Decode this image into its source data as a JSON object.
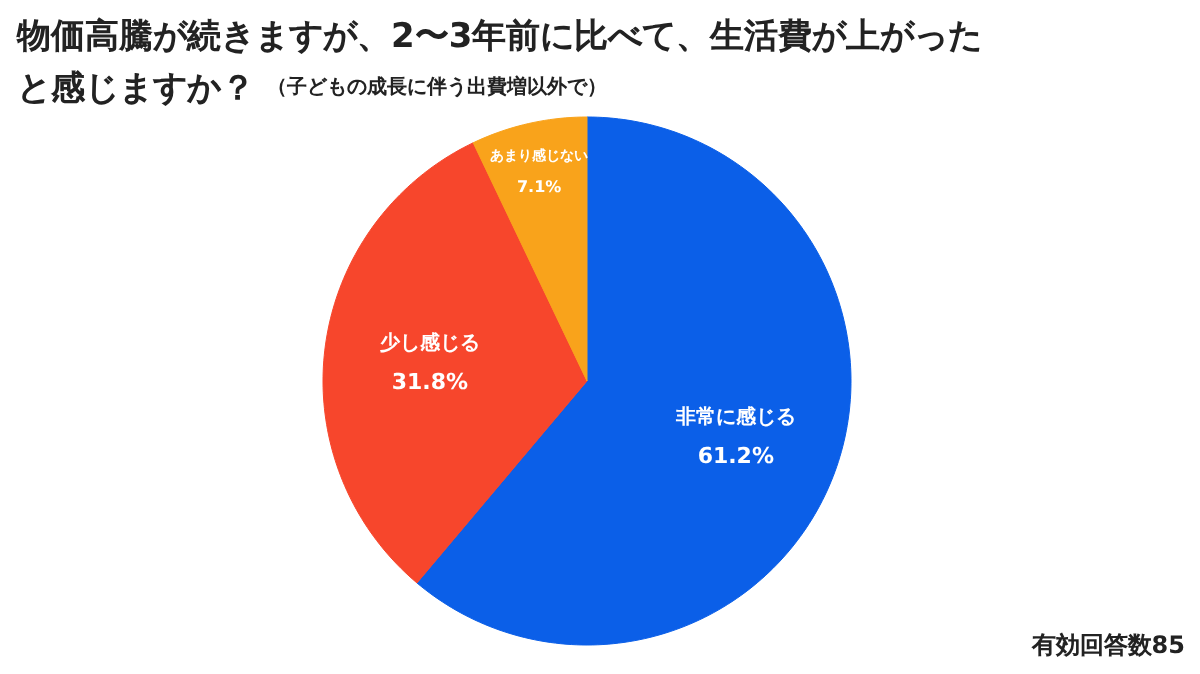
{
  "chart_data": {
    "type": "pie",
    "title": "物価高騰が続きますが、2〜3年前に比べて、生活費が上がったと感じますか？",
    "subtitle": "（子どもの成長に伴う出費増以外で）",
    "categories": [
      "非常に感じる",
      "少し感じる",
      "あまり感じない"
    ],
    "values": [
      61.2,
      31.8,
      7.1
    ],
    "value_labels": [
      "61.2%",
      "31.8%",
      "7.1%"
    ],
    "colors": [
      "#0b5fe8",
      "#f7462c",
      "#f9a31b"
    ],
    "annotations": [
      "有効回答数85"
    ]
  }
}
